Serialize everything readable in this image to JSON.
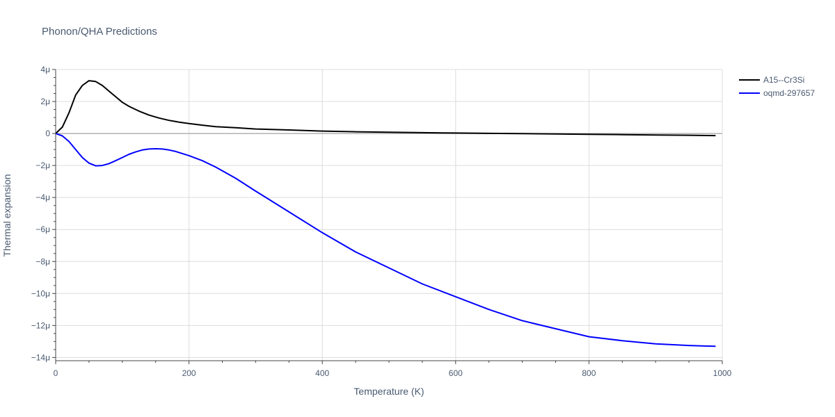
{
  "chart_data": {
    "type": "line",
    "title": "Phonon/QHA Predictions",
    "xlabel": "Temperature (K)",
    "ylabel": "Thermal expansion",
    "xlim": [
      0,
      1000
    ],
    "ylim": [
      -14.2,
      4.0
    ],
    "x_ticks": [
      0,
      200,
      400,
      600,
      800,
      1000
    ],
    "x_tick_labels": [
      "0",
      "200",
      "400",
      "600",
      "800",
      "1000"
    ],
    "y_ticks": [
      4,
      2,
      0,
      -2,
      -4,
      -6,
      -8,
      -10,
      -12,
      -14
    ],
    "y_tick_labels": [
      "4μ",
      "2μ",
      "0",
      "−2μ",
      "−4μ",
      "−6μ",
      "−8μ",
      "−10μ",
      "−12μ",
      "−14μ"
    ],
    "y_unit_scale": "1e-6",
    "grid": true,
    "legend_position": "top-right",
    "series": [
      {
        "name": "A15--Cr3Si",
        "color": "#000000",
        "x": [
          0,
          10,
          20,
          30,
          40,
          50,
          60,
          70,
          80,
          90,
          100,
          110,
          125,
          140,
          155,
          170,
          185,
          200,
          220,
          240,
          270,
          300,
          350,
          400,
          450,
          500,
          550,
          600,
          650,
          700,
          750,
          800,
          850,
          900,
          950,
          990
        ],
        "y": [
          0,
          0.4,
          1.3,
          2.4,
          3.0,
          3.3,
          3.25,
          3.0,
          2.65,
          2.3,
          1.95,
          1.7,
          1.4,
          1.15,
          0.97,
          0.82,
          0.71,
          0.62,
          0.52,
          0.43,
          0.36,
          0.28,
          0.22,
          0.15,
          0.11,
          0.08,
          0.05,
          0.03,
          0.01,
          -0.01,
          -0.03,
          -0.05,
          -0.07,
          -0.09,
          -0.11,
          -0.13
        ]
      },
      {
        "name": "oqmd-297657",
        "color": "#0000ff",
        "x": [
          0,
          10,
          20,
          30,
          40,
          50,
          60,
          70,
          80,
          90,
          100,
          110,
          120,
          130,
          140,
          150,
          160,
          170,
          180,
          190,
          200,
          220,
          240,
          270,
          300,
          350,
          400,
          450,
          500,
          550,
          600,
          650,
          700,
          750,
          800,
          850,
          900,
          950,
          990
        ],
        "y": [
          0,
          -0.15,
          -0.5,
          -1.0,
          -1.5,
          -1.85,
          -2.02,
          -2.0,
          -1.88,
          -1.7,
          -1.5,
          -1.3,
          -1.15,
          -1.03,
          -0.97,
          -0.95,
          -0.97,
          -1.03,
          -1.12,
          -1.25,
          -1.38,
          -1.7,
          -2.1,
          -2.8,
          -3.6,
          -4.9,
          -6.2,
          -7.4,
          -8.4,
          -9.4,
          -10.2,
          -11.0,
          -11.7,
          -12.2,
          -12.7,
          -12.95,
          -13.15,
          -13.25,
          -13.3
        ]
      }
    ]
  }
}
